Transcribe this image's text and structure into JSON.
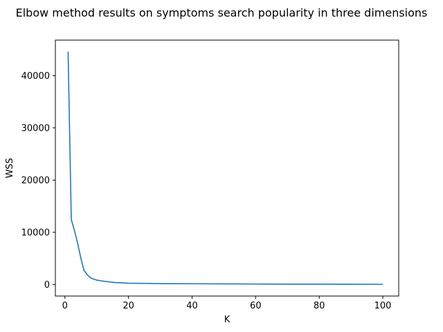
{
  "chart_data": {
    "type": "line",
    "title": "Elbow method results on symptoms search popularity in three dimensions",
    "xlabel": "K",
    "ylabel": "WSS",
    "xlim": [
      -3,
      105
    ],
    "ylim": [
      -2200,
      46800
    ],
    "xticks": [
      0,
      20,
      40,
      60,
      80,
      100
    ],
    "xtick_labels": [
      "0",
      "20",
      "40",
      "60",
      "80",
      "100"
    ],
    "yticks": [
      0,
      10000,
      20000,
      30000,
      40000
    ],
    "ytick_labels": [
      "0",
      "10000",
      "20000",
      "30000",
      "40000"
    ],
    "grid": false,
    "legend": "none",
    "series": [
      {
        "color": "#1f77b4",
        "x": [
          1,
          2,
          3,
          4,
          5,
          6,
          7,
          8,
          9,
          10,
          12,
          14,
          16,
          18,
          20,
          25,
          30,
          40,
          50,
          60,
          70,
          80,
          90,
          100
        ],
        "y": [
          44600,
          12500,
          10300,
          7900,
          5100,
          2700,
          1900,
          1300,
          1050,
          850,
          650,
          500,
          380,
          320,
          260,
          220,
          180,
          150,
          120,
          100,
          80,
          70,
          60,
          50
        ]
      }
    ]
  }
}
